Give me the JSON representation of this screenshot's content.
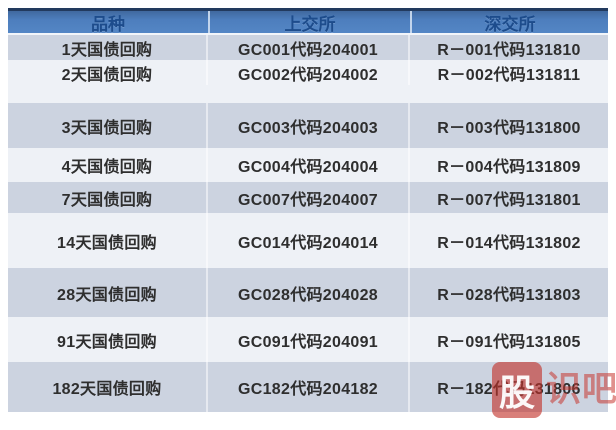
{
  "chart_data": {
    "type": "table",
    "columns": [
      "品种",
      "上交所",
      "深交所"
    ],
    "rows": [
      [
        "1天国债回购",
        "GC001代码204001",
        "R－001代码131810"
      ],
      [
        "2天国债回购",
        "GC002代码204002",
        "R－002代码131811"
      ],
      [
        "3天国债回购",
        "GC003代码204003",
        "R－003代码131800"
      ],
      [
        "4天国债回购",
        "GC004代码204004",
        "R－004代码131809"
      ],
      [
        "7天国债回购",
        "GC007代码204007",
        "R－007代码131801"
      ],
      [
        "14天国债回购",
        "GC014代码204014",
        "R－014代码131802"
      ],
      [
        "28天国债回购",
        "GC028代码204028",
        "R－028代码131803"
      ],
      [
        "91天国债回购",
        "GC091代码204091",
        "R－091代码131805"
      ],
      [
        "182天国债回购",
        "GC182代码204182",
        "R－182代码131806"
      ]
    ]
  },
  "watermark": {
    "badge_char": "股",
    "rest_text": "识吧"
  },
  "colors": {
    "header_bg": "#4d7ebd",
    "header_border_top": "#223a5e",
    "header_text": "#1d4c8c",
    "row_gray": "#ccd3e0",
    "row_white": "#eef1f6",
    "body_text": "#2e2e2e",
    "watermark_red": "#c13028"
  }
}
